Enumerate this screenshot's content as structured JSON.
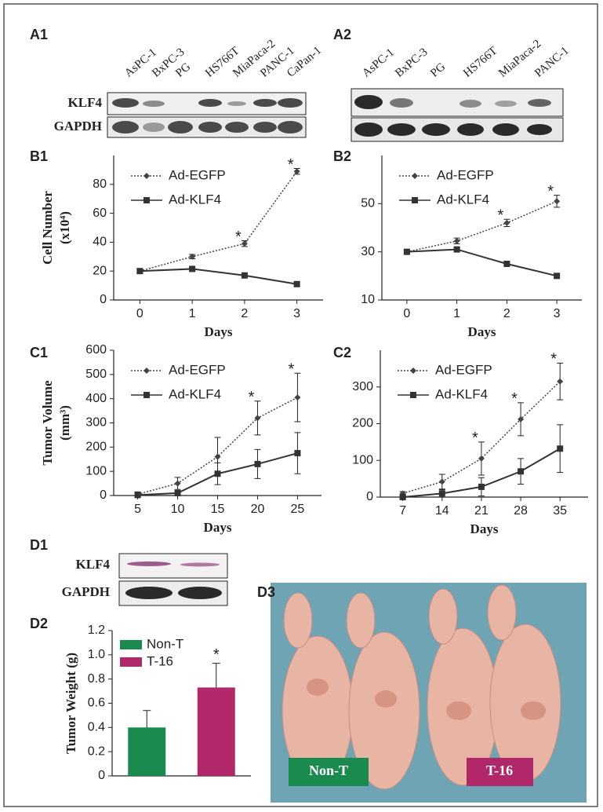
{
  "panel_labels": [
    "A1",
    "A2",
    "B1",
    "B2",
    "C1",
    "C2",
    "D1",
    "D2",
    "D3"
  ],
  "blots": [
    {
      "lanes": [
        "AsPC-1",
        "BxPC-3",
        "PG",
        "HS766T",
        "MiaPaca-2",
        "PANC-1",
        "CaPan-1"
      ],
      "rows": [
        "KLF4",
        "GAPDH"
      ]
    },
    {
      "lanes": [
        "AsPC-1",
        "BxPC-3",
        "PG",
        "HS766T",
        "MiaPaca-2",
        "PANC-1"
      ]
    },
    {
      "rows": [
        "KLF4",
        "GAPDH"
      ]
    }
  ],
  "photo": {
    "labels": [
      "Non-T",
      "T-16"
    ]
  },
  "chart_data": [
    {
      "type": "line",
      "ylabel": [
        "Cell Number",
        "(x10⁴)"
      ],
      "xlabel": "Days",
      "x": [
        0,
        1,
        2,
        3
      ],
      "xlim": [
        -0.5,
        3.5
      ],
      "xticks": [
        0,
        1,
        2,
        3
      ],
      "ylim": [
        0,
        100
      ],
      "yticks": [
        0,
        20,
        40,
        60,
        80
      ],
      "series": [
        {
          "name": "Ad-EGFP",
          "color": "#444",
          "style": "dotted",
          "marker": "diamond",
          "values": [
            20,
            30,
            39,
            89
          ],
          "errors": [
            1,
            1.5,
            2,
            2
          ]
        },
        {
          "name": "Ad-KLF4",
          "color": "#333",
          "style": "solid",
          "marker": "square",
          "values": [
            20,
            21.5,
            17,
            11
          ],
          "errors": [
            1,
            1,
            1,
            1.5
          ]
        }
      ],
      "annotations": [
        {
          "text": "*",
          "x": 2
        },
        {
          "text": "*",
          "x": 3
        }
      ]
    },
    {
      "type": "line",
      "xlabel": "Days",
      "x": [
        0,
        1,
        2,
        3
      ],
      "xlim": [
        -0.5,
        3.5
      ],
      "xticks": [
        0,
        1,
        2,
        3
      ],
      "ylim": [
        10,
        70
      ],
      "yticks": [
        10,
        30,
        50
      ],
      "series": [
        {
          "name": "Ad-EGFP",
          "color": "#444",
          "style": "dotted",
          "marker": "diamond",
          "values": [
            30,
            34.5,
            42,
            51
          ],
          "errors": [
            0.8,
            1.2,
            1.5,
            2.5
          ]
        },
        {
          "name": "Ad-KLF4",
          "color": "#333",
          "style": "solid",
          "marker": "square",
          "values": [
            30,
            31,
            25,
            20
          ],
          "errors": [
            0.8,
            0.8,
            0.8,
            1
          ]
        }
      ],
      "annotations": [
        {
          "text": "*",
          "x": 2
        },
        {
          "text": "*",
          "x": 3
        }
      ]
    },
    {
      "type": "line",
      "ylabel": [
        "Tumor Volume",
        "(mm³)"
      ],
      "xlabel": "Days",
      "x": [
        5,
        10,
        15,
        20,
        25
      ],
      "xlim": [
        2,
        28
      ],
      "xticks": [
        5,
        10,
        15,
        20,
        25
      ],
      "ylim": [
        0,
        600
      ],
      "yticks": [
        0,
        100,
        200,
        300,
        400,
        500,
        600
      ],
      "series": [
        {
          "name": "Ad-EGFP",
          "color": "#444",
          "style": "dotted",
          "marker": "diamond",
          "values": [
            5,
            50,
            160,
            320,
            405
          ],
          "errors": [
            10,
            25,
            80,
            70,
            100
          ]
        },
        {
          "name": "Ad-KLF4",
          "color": "#333",
          "style": "solid",
          "marker": "square",
          "values": [
            2,
            10,
            90,
            130,
            175
          ],
          "errors": [
            5,
            10,
            45,
            60,
            85
          ]
        }
      ],
      "annotations": [
        {
          "text": "*",
          "x": 20
        },
        {
          "text": "*",
          "x": 25
        }
      ]
    },
    {
      "type": "line",
      "xlabel": "Days",
      "x": [
        7,
        14,
        21,
        28,
        35
      ],
      "xlim": [
        3,
        40
      ],
      "xticks": [
        7,
        14,
        21,
        28,
        35
      ],
      "ylim": [
        0,
        400
      ],
      "yticks": [
        0,
        100,
        200,
        300
      ],
      "series": [
        {
          "name": "Ad-EGFP",
          "color": "#444",
          "style": "dotted",
          "marker": "diamond",
          "values": [
            10,
            42,
            105,
            212,
            315
          ],
          "errors": [
            5,
            20,
            45,
            45,
            50
          ]
        },
        {
          "name": "Ad-KLF4",
          "color": "#333",
          "style": "solid",
          "marker": "square",
          "values": [
            0,
            10,
            28,
            70,
            132
          ],
          "errors": [
            3,
            10,
            25,
            35,
            65
          ]
        }
      ],
      "annotations": [
        {
          "text": "*",
          "x": 21
        },
        {
          "text": "*",
          "x": 28
        },
        {
          "text": "*",
          "x": 35
        }
      ]
    },
    {
      "type": "bar",
      "ylabel": "Tumor Weight (g)",
      "categories": [
        "Non-T",
        "T-16"
      ],
      "values": [
        0.4,
        0.73
      ],
      "errors": [
        0.14,
        0.2
      ],
      "colors": [
        "#1a8a4e",
        "#b0286a"
      ],
      "ylim": [
        0,
        1.2
      ],
      "yticks": [
        0,
        0.2,
        0.4,
        0.6,
        0.8,
        {
          "value": 1,
          "label": "1.0"
        },
        1.2
      ],
      "annotations": [
        {
          "text": "*",
          "category": 1
        }
      ]
    }
  ]
}
